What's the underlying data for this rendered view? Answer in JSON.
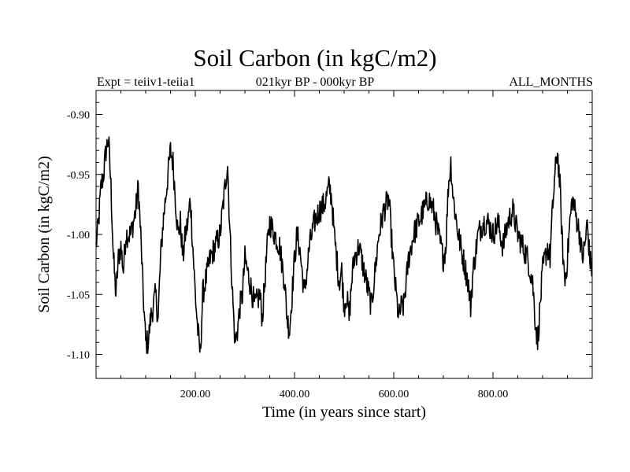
{
  "chart_data": {
    "type": "line",
    "title": "Soil Carbon (in kgC/m2)",
    "subtitle_left": "Expt = teiiv1-teiia1",
    "subtitle_center": "021kyr BP - 000kyr BP",
    "subtitle_right": "ALL_MONTHS",
    "xlabel": "Time (in years since start)",
    "ylabel": "Soil Carbon (in kgC/m2)",
    "xlim": [
      0,
      1000
    ],
    "ylim": [
      -1.12,
      -0.88
    ],
    "xticks": [
      200,
      400,
      600,
      800
    ],
    "xtick_labels": [
      "200.00",
      "400.00",
      "600.00",
      "800.00"
    ],
    "yticks": [
      -0.9,
      -0.95,
      -1.0,
      -1.05,
      -1.1
    ],
    "ytick_labels": [
      "-0.90",
      "-0.95",
      "-1.00",
      "-1.05",
      "-1.10"
    ],
    "grid": false,
    "series": [
      {
        "color": "#000000",
        "anchors": [
          [
            0,
            -1.01
          ],
          [
            5,
            -0.99
          ],
          [
            10,
            -0.96
          ],
          [
            15,
            -0.95
          ],
          [
            20,
            -0.93
          ],
          [
            25,
            -0.92
          ],
          [
            30,
            -0.96
          ],
          [
            35,
            -1.02
          ],
          [
            40,
            -1.05
          ],
          [
            45,
            -1.02
          ],
          [
            50,
            -1.01
          ],
          [
            55,
            -1.03
          ],
          [
            60,
            -1.0
          ],
          [
            70,
            -1.0
          ],
          [
            80,
            -0.98
          ],
          [
            85,
            -0.96
          ],
          [
            90,
            -1.0
          ],
          [
            95,
            -1.05
          ],
          [
            100,
            -1.09
          ],
          [
            105,
            -1.09
          ],
          [
            110,
            -1.07
          ],
          [
            115,
            -1.06
          ],
          [
            120,
            -1.05
          ],
          [
            125,
            -1.07
          ],
          [
            130,
            -1.02
          ],
          [
            135,
            -0.99
          ],
          [
            140,
            -0.97
          ],
          [
            145,
            -0.95
          ],
          [
            150,
            -0.93
          ],
          [
            155,
            -0.94
          ],
          [
            160,
            -0.97
          ],
          [
            165,
            -1.0
          ],
          [
            170,
            -0.99
          ],
          [
            175,
            -1.02
          ],
          [
            180,
            -1.0
          ],
          [
            185,
            -0.99
          ],
          [
            190,
            -0.97
          ],
          [
            195,
            -1.01
          ],
          [
            200,
            -1.05
          ],
          [
            205,
            -1.08
          ],
          [
            210,
            -1.1
          ],
          [
            215,
            -1.05
          ],
          [
            220,
            -1.04
          ],
          [
            230,
            -1.02
          ],
          [
            240,
            -1.01
          ],
          [
            250,
            -1.0
          ],
          [
            260,
            -0.96
          ],
          [
            265,
            -0.94
          ],
          [
            270,
            -1.0
          ],
          [
            275,
            -1.05
          ],
          [
            280,
            -1.09
          ],
          [
            285,
            -1.08
          ],
          [
            290,
            -1.06
          ],
          [
            295,
            -1.05
          ],
          [
            300,
            -1.02
          ],
          [
            310,
            -1.04
          ],
          [
            320,
            -1.06
          ],
          [
            330,
            -1.05
          ],
          [
            335,
            -1.07
          ],
          [
            340,
            -1.04
          ],
          [
            345,
            -1.01
          ],
          [
            350,
            -0.99
          ],
          [
            360,
            -1.0
          ],
          [
            370,
            -1.01
          ],
          [
            380,
            -1.04
          ],
          [
            385,
            -1.07
          ],
          [
            390,
            -1.08
          ],
          [
            395,
            -1.05
          ],
          [
            400,
            -1.02
          ],
          [
            405,
            -1.0
          ],
          [
            410,
            -1.01
          ],
          [
            415,
            -1.03
          ],
          [
            420,
            -1.05
          ],
          [
            425,
            -1.03
          ],
          [
            430,
            -1.01
          ],
          [
            440,
            -0.99
          ],
          [
            450,
            -0.98
          ],
          [
            460,
            -0.975
          ],
          [
            470,
            -0.96
          ],
          [
            475,
            -0.97
          ],
          [
            480,
            -1.0
          ],
          [
            485,
            -1.02
          ],
          [
            490,
            -1.04
          ],
          [
            495,
            -1.03
          ],
          [
            500,
            -1.06
          ],
          [
            505,
            -1.05
          ],
          [
            510,
            -1.07
          ],
          [
            515,
            -1.04
          ],
          [
            520,
            -1.02
          ],
          [
            530,
            -1.01
          ],
          [
            540,
            -1.03
          ],
          [
            550,
            -1.05
          ],
          [
            555,
            -1.06
          ],
          [
            560,
            -1.04
          ],
          [
            570,
            -1.0
          ],
          [
            580,
            -0.98
          ],
          [
            590,
            -0.97
          ],
          [
            595,
            -1.0
          ],
          [
            600,
            -1.03
          ],
          [
            605,
            -1.05
          ],
          [
            610,
            -1.07
          ],
          [
            615,
            -1.06
          ],
          [
            620,
            -1.06
          ],
          [
            625,
            -1.04
          ],
          [
            630,
            -1.02
          ],
          [
            640,
            -1.0
          ],
          [
            650,
            -0.99
          ],
          [
            660,
            -0.98
          ],
          [
            670,
            -0.97
          ],
          [
            680,
            -0.98
          ],
          [
            690,
            -1.0
          ],
          [
            700,
            -1.02
          ],
          [
            705,
            -1.01
          ],
          [
            710,
            -0.96
          ],
          [
            715,
            -0.94
          ],
          [
            720,
            -0.97
          ],
          [
            730,
            -1.0
          ],
          [
            740,
            -1.02
          ],
          [
            750,
            -1.04
          ],
          [
            755,
            -1.06
          ],
          [
            760,
            -1.03
          ],
          [
            770,
            -1.0
          ],
          [
            780,
            -0.99
          ],
          [
            790,
            -0.99
          ],
          [
            800,
            -1.0
          ],
          [
            810,
            -0.99
          ],
          [
            820,
            -1.01
          ],
          [
            830,
            -0.99
          ],
          [
            840,
            -0.98
          ],
          [
            850,
            -1.0
          ],
          [
            860,
            -1.01
          ],
          [
            870,
            -1.02
          ],
          [
            880,
            -1.04
          ],
          [
            885,
            -1.07
          ],
          [
            890,
            -1.09
          ],
          [
            895,
            -1.06
          ],
          [
            900,
            -1.03
          ],
          [
            910,
            -1.01
          ],
          [
            915,
            -1.02
          ],
          [
            920,
            -0.98
          ],
          [
            925,
            -0.95
          ],
          [
            930,
            -0.93
          ],
          [
            935,
            -0.96
          ],
          [
            940,
            -1.01
          ],
          [
            945,
            -1.04
          ],
          [
            950,
            -1.02
          ],
          [
            955,
            -0.99
          ],
          [
            960,
            -0.97
          ],
          [
            965,
            -0.98
          ],
          [
            970,
            -0.99
          ],
          [
            975,
            -1.0
          ],
          [
            980,
            -1.02
          ],
          [
            985,
            -1.01
          ],
          [
            990,
            -0.99
          ],
          [
            995,
            -1.02
          ],
          [
            1000,
            -1.03
          ]
        ]
      }
    ]
  }
}
